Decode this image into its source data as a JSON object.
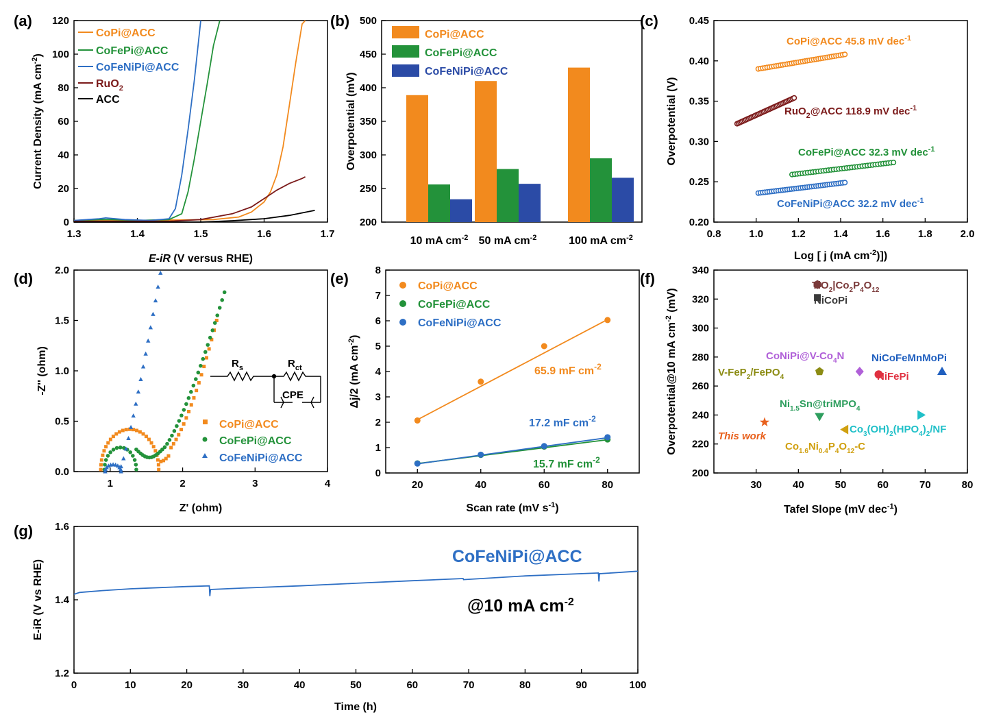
{
  "colors": {
    "copi": "#F28A1E",
    "cofepi": "#23923A",
    "cofenipi": "#2E6FC4",
    "ruo2": "#7B1A1A",
    "acc": "#000000",
    "bar_blue": "#2B4BA6"
  },
  "chart_data": [
    {
      "panel": "(a)",
      "type": "line",
      "xlabel": "E-iR (V versus RHE)",
      "ylabel": "Current Density (mA cm⁻²)",
      "xlim": [
        1.3,
        1.7
      ],
      "ylim": [
        0,
        120
      ],
      "xticks": [
        "1.3",
        "1.4",
        "1.5",
        "1.6",
        "1.7"
      ],
      "yticks": [
        "0",
        "20",
        "40",
        "60",
        "80",
        "100",
        "120"
      ],
      "series": [
        {
          "name": "CoPi@ACC",
          "color": "#F28A1E",
          "x": [
            1.3,
            1.4,
            1.52,
            1.56,
            1.58,
            1.6,
            1.61,
            1.62,
            1.63,
            1.64,
            1.65,
            1.66,
            1.665
          ],
          "y": [
            1,
            1,
            1.5,
            3,
            6,
            12,
            18,
            28,
            45,
            70,
            95,
            118,
            120
          ]
        },
        {
          "name": "CoFePi@ACC",
          "color": "#23923A",
          "x": [
            1.3,
            1.34,
            1.36,
            1.4,
            1.45,
            1.47,
            1.48,
            1.49,
            1.5,
            1.51,
            1.52,
            1.53
          ],
          "y": [
            1,
            1.5,
            1.5,
            1,
            1.5,
            5,
            18,
            38,
            60,
            82,
            105,
            120
          ]
        },
        {
          "name": "CoFeNiPi@ACC",
          "color": "#2E6FC4",
          "x": [
            1.3,
            1.34,
            1.35,
            1.38,
            1.42,
            1.45,
            1.46,
            1.47,
            1.48,
            1.49,
            1.5
          ],
          "y": [
            1,
            2,
            2.5,
            1.5,
            1,
            2,
            8,
            28,
            55,
            85,
            120
          ]
        },
        {
          "name": "RuO2",
          "color": "#7B1A1A",
          "x": [
            1.3,
            1.45,
            1.5,
            1.55,
            1.58,
            1.6,
            1.62,
            1.64,
            1.66,
            1.665
          ],
          "y": [
            0.5,
            0.5,
            1.5,
            5,
            9,
            14,
            19,
            23,
            26,
            27
          ]
        },
        {
          "name": "ACC",
          "color": "#000000",
          "x": [
            1.3,
            1.5,
            1.55,
            1.6,
            1.64,
            1.68
          ],
          "y": [
            0,
            0,
            0.8,
            2,
            4,
            7
          ]
        }
      ]
    },
    {
      "panel": "(b)",
      "type": "bar",
      "ylabel": "Overpotential (mV)",
      "ylim": [
        200,
        500
      ],
      "yticks": [
        "200",
        "250",
        "300",
        "350",
        "400",
        "450",
        "500"
      ],
      "categories": [
        "10 mA cm⁻²",
        "50 mA cm⁻²",
        "100 mA cm⁻²"
      ],
      "series": [
        {
          "name": "CoPi@ACC",
          "color": "#F28A1E",
          "values": [
            389,
            410,
            430
          ]
        },
        {
          "name": "CoFePi@ACC",
          "color": "#23923A",
          "values": [
            256,
            279,
            295
          ]
        },
        {
          "name": "CoFeNiPi@ACC",
          "color": "#2B4BA6",
          "values": [
            234,
            257,
            266
          ]
        }
      ]
    },
    {
      "panel": "(c)",
      "type": "scatter",
      "xlabel": "Log [ j (mA cm⁻²)]",
      "ylabel": "Overpotential (V)",
      "xlim": [
        0.8,
        2.0
      ],
      "ylim": [
        0.2,
        0.45
      ],
      "xticks": [
        "0.8",
        "1.0",
        "1.2",
        "1.4",
        "1.6",
        "1.8",
        "2.0"
      ],
      "yticks": [
        "0.20",
        "0.25",
        "0.30",
        "0.35",
        "0.40",
        "0.45"
      ],
      "series": [
        {
          "name": "CoPi@ACC 45.8 mV dec⁻¹",
          "color": "#F28A1E",
          "x0": 1.01,
          "x1": 1.42,
          "y0": 0.39,
          "y1": 0.408
        },
        {
          "name": "RuO₂@ACC 118.9 mV dec⁻¹",
          "color": "#7B1A1A",
          "x0": 0.91,
          "x1": 1.18,
          "y0": 0.322,
          "y1": 0.354
        },
        {
          "name": "CoFePi@ACC 32.3 mV dec⁻¹",
          "color": "#23923A",
          "x0": 1.17,
          "x1": 1.65,
          "y0": 0.259,
          "y1": 0.274
        },
        {
          "name": "CoFeNiPi@ACC 32.2 mV dec⁻¹",
          "color": "#2E6FC4",
          "x0": 1.01,
          "x1": 1.42,
          "y0": 0.236,
          "y1": 0.249
        }
      ]
    },
    {
      "panel": "(d)",
      "type": "scatter",
      "xlabel": "Z' (ohm)",
      "ylabel": "-Z'' (ohm)",
      "xlim": [
        0.5,
        4
      ],
      "ylim": [
        0,
        2.0
      ],
      "xticks": [
        "1",
        "2",
        "3",
        "4"
      ],
      "yticks": [
        "0.0",
        "0.5",
        "1.0",
        "1.5",
        "2.0"
      ],
      "series": [
        {
          "name": "CoPi@ACC",
          "color": "#F28A1E",
          "marker": "square"
        },
        {
          "name": "CoFePi@ACC",
          "color": "#23923A",
          "marker": "circle"
        },
        {
          "name": "CoFeNiPi@ACC",
          "color": "#2E6FC4",
          "marker": "triangle"
        }
      ],
      "circuit": {
        "rs": "Rs",
        "rct": "Rct",
        "cpe": "CPE"
      }
    },
    {
      "panel": "(e)",
      "type": "scatter",
      "xlabel": "Scan rate (mV s⁻¹)",
      "ylabel": "Δj/2 (mA cm⁻²)",
      "xlim": [
        10,
        90
      ],
      "ylim": [
        0,
        8
      ],
      "xticks": [
        "20",
        "40",
        "60",
        "80"
      ],
      "yticks": [
        "0",
        "1",
        "2",
        "3",
        "4",
        "5",
        "6",
        "7",
        "8"
      ],
      "series": [
        {
          "name": "CoPi@ACC",
          "color": "#F28A1E",
          "x": [
            20,
            40,
            60,
            80
          ],
          "y": [
            2.07,
            3.6,
            5.0,
            6.03
          ],
          "fit": [
            2.1,
            6.05
          ],
          "label": "65.9 mF cm⁻²"
        },
        {
          "name": "CoFePi@ACC",
          "color": "#23923A",
          "x": [
            20,
            40,
            60,
            80
          ],
          "y": [
            0.38,
            0.71,
            1.04,
            1.32
          ],
          "fit": [
            0.37,
            1.31
          ],
          "label": "15.7 mF cm⁻²"
        },
        {
          "name": "CoFeNiPi@ACC",
          "color": "#2E6FC4",
          "x": [
            20,
            40,
            60,
            80
          ],
          "y": [
            0.37,
            0.72,
            1.06,
            1.41
          ],
          "fit": [
            0.36,
            1.39
          ],
          "label": "17.2 mF cm⁻²"
        }
      ]
    },
    {
      "panel": "(f)",
      "type": "scatter",
      "xlabel": "Tafel Slope (mV dec⁻¹)",
      "ylabel": "Overpotential@10 mA cm⁻² (mV)",
      "xlim": [
        20,
        80
      ],
      "ylim": [
        200,
        340
      ],
      "xticks": [
        "30",
        "40",
        "50",
        "60",
        "70",
        "80"
      ],
      "yticks": [
        "200",
        "220",
        "240",
        "260",
        "280",
        "300",
        "320",
        "340"
      ],
      "points": [
        {
          "name": "TiO₂|Co₂P₄O₁₂",
          "x": 44.5,
          "y": 330,
          "color": "#7B3A3A",
          "marker": "hexagon"
        },
        {
          "name": "NiCoPi",
          "x": 44.5,
          "y": 321,
          "color": "#3A3A3A",
          "marker": "square"
        },
        {
          "name": "CoNiPi@V-Co₄N",
          "x": 54.5,
          "y": 270,
          "color": "#B060D8",
          "marker": "diamond"
        },
        {
          "name": "NiCoFeMnMoPi",
          "x": 74,
          "y": 270,
          "color": "#1F5FBF",
          "marker": "triangle-up"
        },
        {
          "name": "V-FeP₂/FePO₄",
          "x": 45,
          "y": 270,
          "color": "#8C8C14",
          "marker": "pentagon"
        },
        {
          "name": "NiFePi",
          "x": 59,
          "y": 268,
          "color": "#E03040",
          "marker": "circle"
        },
        {
          "name": "Ni₁.₅Sn@triMPO₄",
          "x": 45,
          "y": 239,
          "color": "#2E9E5E",
          "marker": "triangle-down"
        },
        {
          "name": "Co₃(OH)₂(HPO₄)₂/NF",
          "x": 69,
          "y": 240,
          "color": "#20C0C8",
          "marker": "triangle-right"
        },
        {
          "name": "This work",
          "x": 32,
          "y": 235,
          "color": "#E8601C",
          "marker": "star"
        },
        {
          "name": "Co₁.₆Ni₀.₄P₄O₁₂-C",
          "x": 51,
          "y": 230,
          "color": "#D0A010",
          "marker": "triangle-left"
        }
      ]
    },
    {
      "panel": "(g)",
      "type": "line",
      "xlabel": "Time (h)",
      "ylabel": "E-iR (V vs RHE)",
      "xlim": [
        0,
        100
      ],
      "ylim": [
        1.2,
        1.6
      ],
      "xticks": [
        "0",
        "10",
        "20",
        "30",
        "40",
        "50",
        "60",
        "70",
        "80",
        "90",
        "100"
      ],
      "yticks": [
        "1.2",
        "1.4",
        "1.6"
      ],
      "series": [
        {
          "name": "CoFeNiPi@ACC",
          "color": "#2E6FC4",
          "x": [
            0,
            1,
            5,
            10,
            15,
            20,
            24,
            24.1,
            24.2,
            30,
            40,
            50,
            60,
            69,
            69.1,
            80,
            93,
            93.1,
            93.2,
            100
          ],
          "y": [
            1.415,
            1.42,
            1.425,
            1.43,
            1.433,
            1.436,
            1.438,
            1.41,
            1.428,
            1.432,
            1.438,
            1.445,
            1.452,
            1.458,
            1.455,
            1.465,
            1.473,
            1.45,
            1.471,
            1.478
          ]
        }
      ],
      "label1": "CoFeNiPi@ACC",
      "label2": "@10 mA cm⁻²"
    }
  ]
}
